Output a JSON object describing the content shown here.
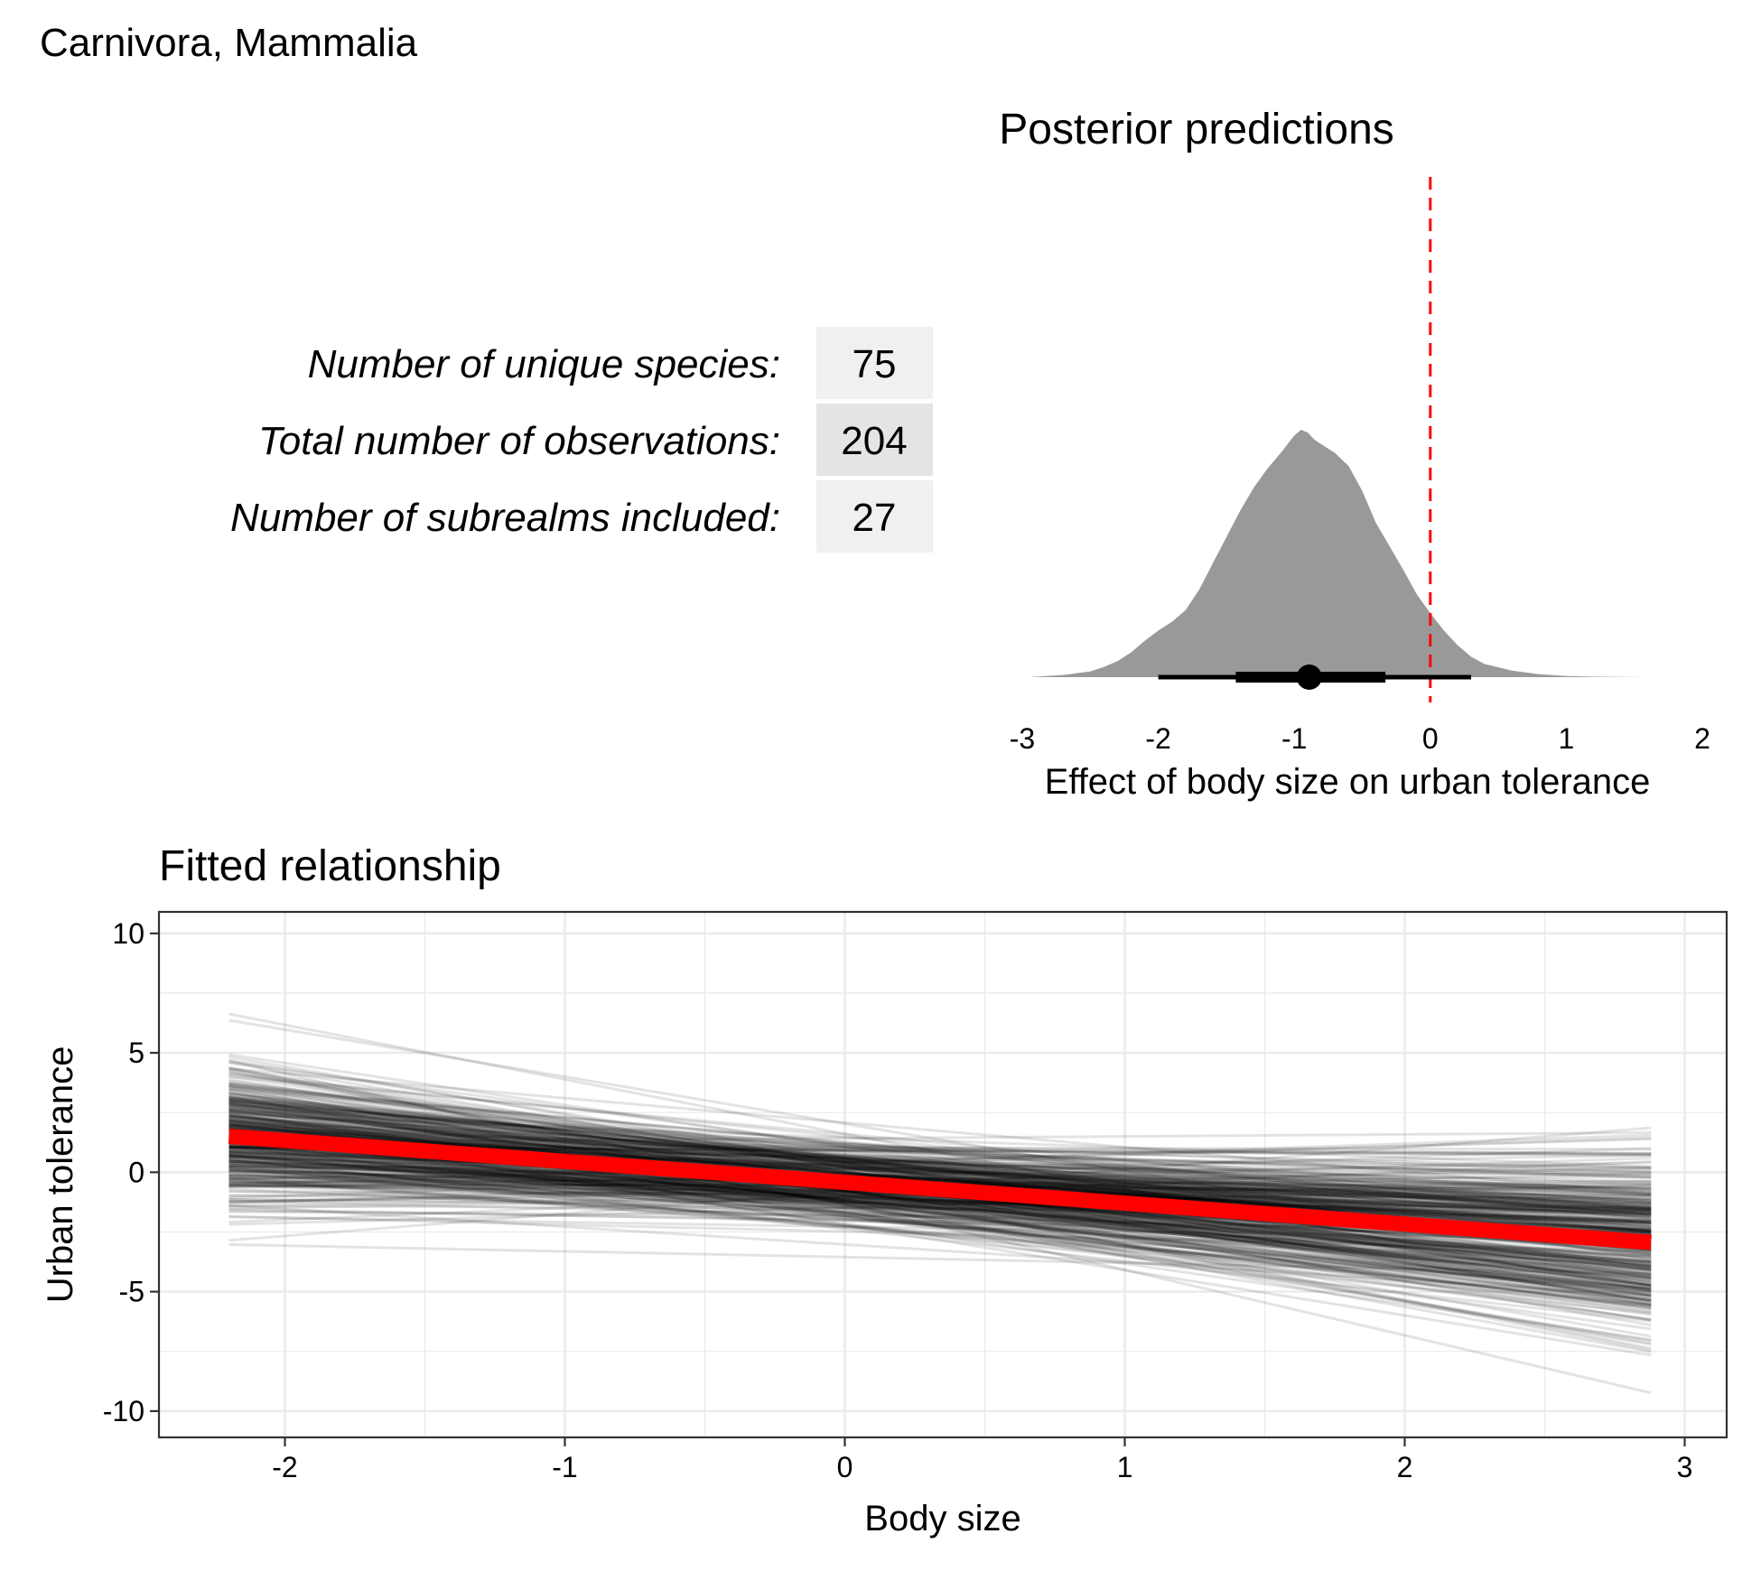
{
  "figure_title": "Carnivora, Mammalia",
  "summary_table": {
    "rows": [
      {
        "label": "Number of unique species:",
        "value": "75"
      },
      {
        "label": "Total number of observations:",
        "value": "204"
      },
      {
        "label": "Number of subrealms included:",
        "value": "27"
      }
    ]
  },
  "colors": {
    "density_fill": "#999999",
    "reference_line": "#ff0000",
    "mean_line": "#ff0000",
    "draw_line": "#000000",
    "grid": "#ebebeb",
    "table_cell": "#f0f0f0",
    "table_cell_alt": "#e4e4e4"
  },
  "chart_data": [
    {
      "type": "area",
      "title": "Posterior predictions",
      "xlabel": "Effect of body size on urban tolerance",
      "ylabel": "",
      "xlim": [
        -3,
        2
      ],
      "xticks": [
        -3,
        -2,
        -1,
        0,
        1,
        2
      ],
      "xtick_labels": [
        "-3",
        "-2",
        "-1",
        "0",
        "1",
        "2"
      ],
      "grid": false,
      "density": {
        "x": [
          -2.95,
          -2.7,
          -2.5,
          -2.4,
          -2.3,
          -2.2,
          -2.1,
          -2.0,
          -1.9,
          -1.8,
          -1.7,
          -1.6,
          -1.5,
          -1.4,
          -1.3,
          -1.2,
          -1.1,
          -1.0,
          -0.95,
          -0.9,
          -0.85,
          -0.8,
          -0.7,
          -0.6,
          -0.5,
          -0.4,
          -0.3,
          -0.2,
          -0.1,
          0.0,
          0.1,
          0.2,
          0.3,
          0.4,
          0.6,
          0.8,
          1.0,
          1.2,
          1.6
        ],
        "y": [
          0.0,
          0.015,
          0.04,
          0.07,
          0.11,
          0.17,
          0.25,
          0.32,
          0.38,
          0.46,
          0.6,
          0.78,
          0.96,
          1.14,
          1.3,
          1.43,
          1.54,
          1.66,
          1.7,
          1.68,
          1.63,
          1.6,
          1.54,
          1.45,
          1.28,
          1.06,
          0.9,
          0.74,
          0.57,
          0.44,
          0.32,
          0.22,
          0.14,
          0.09,
          0.045,
          0.02,
          0.008,
          0.003,
          0.0
        ]
      },
      "point_interval": {
        "point": -0.89,
        "inner_interval": [
          -1.43,
          -0.33
        ],
        "outer_interval": [
          -2.0,
          0.3
        ]
      },
      "reference_line": {
        "x": 0,
        "style": "dashed"
      }
    },
    {
      "type": "line",
      "title": "Fitted relationship",
      "xlabel": "Body size",
      "ylabel": "Urban tolerance",
      "xlim": [
        -2.45,
        3.15
      ],
      "ylim": [
        -11.1,
        10.9
      ],
      "xticks": [
        -2,
        -1,
        0,
        1,
        2,
        3
      ],
      "xtick_labels": [
        "-2",
        "-1",
        "0",
        "1",
        "2",
        "3"
      ],
      "yticks": [
        -10,
        -5,
        0,
        5,
        10
      ],
      "ytick_labels": [
        "-10",
        "-5",
        "0",
        "5",
        "10"
      ],
      "grid": true,
      "x_range": [
        -2.2,
        2.88
      ],
      "mean_line": {
        "intercept": -0.42,
        "slope": -0.875
      },
      "posterior_draws": {
        "count": 400,
        "intercept_mean": -0.42,
        "intercept_sd": 0.9,
        "slope_mean": -0.875,
        "slope_sd": 0.55
      }
    }
  ]
}
